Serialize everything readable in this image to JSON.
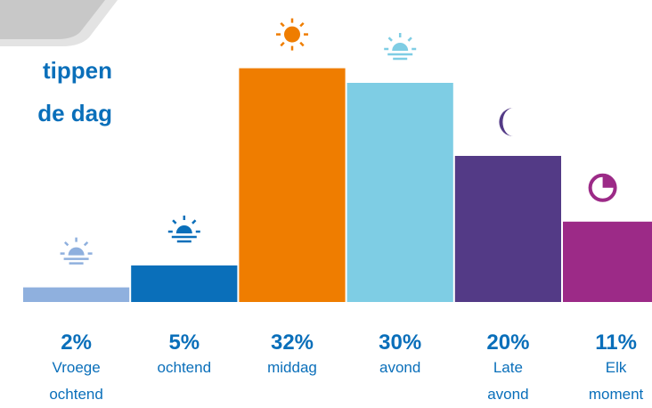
{
  "chart_data": {
    "type": "bar",
    "title": [
      "tippen",
      "de dag"
    ],
    "categories": [
      "Vroege ochtend",
      "ochtend",
      "middag",
      "avond",
      "Late avond",
      "Elk moment"
    ],
    "values": [
      2,
      5,
      32,
      30,
      20,
      11
    ],
    "value_labels": [
      "2%",
      "5%",
      "32%",
      "30%",
      "20%",
      "11%"
    ],
    "colors": [
      "#8fb0de",
      "#0a6fba",
      "#ef7d00",
      "#7ecde4",
      "#533a86",
      "#9c2a87"
    ],
    "ylim": [
      0,
      40
    ]
  }
}
